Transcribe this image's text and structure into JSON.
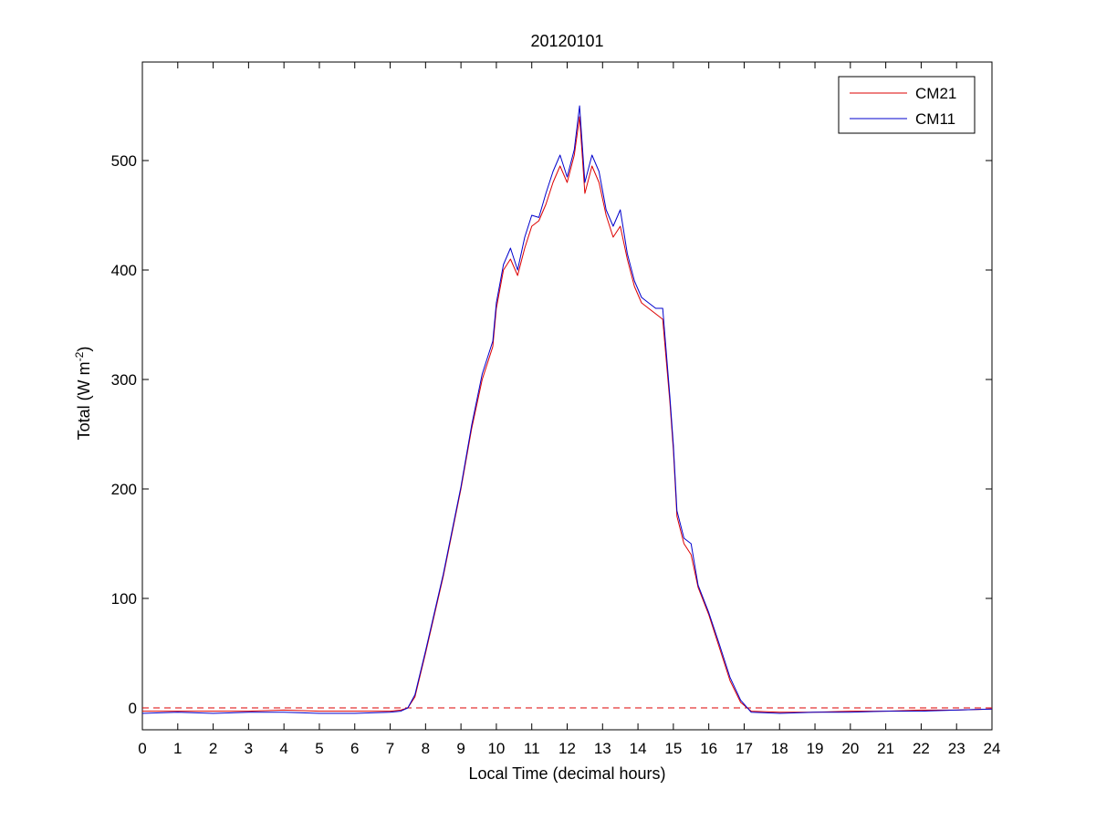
{
  "chart_data": {
    "type": "line",
    "title": "20120101",
    "xlabel": "Local Time (decimal hours)",
    "ylabel": {
      "prefix": "Total (W m",
      "superscript": "-2",
      "suffix": ")"
    },
    "xlim": [
      0,
      24
    ],
    "ylim": [
      -20,
      590
    ],
    "xticks": [
      "0",
      "1",
      "2",
      "3",
      "4",
      "5",
      "6",
      "7",
      "8",
      "9",
      "10",
      "11",
      "12",
      "13",
      "14",
      "15",
      "16",
      "17",
      "18",
      "19",
      "20",
      "21",
      "22",
      "23",
      "24"
    ],
    "yticks": [
      "0",
      "100",
      "200",
      "300",
      "400",
      "500"
    ],
    "grid": false,
    "legend_position": "top-right",
    "reference_line": {
      "y": 0,
      "style": "dashed",
      "color": "#dd0000"
    },
    "series": [
      {
        "name": "CM21",
        "color": "#dd0000",
        "x": [
          0,
          1,
          2,
          3,
          4,
          5,
          6,
          7,
          7.3,
          7.5,
          7.7,
          8.0,
          8.5,
          9.0,
          9.3,
          9.6,
          9.9,
          10.0,
          10.2,
          10.4,
          10.6,
          10.8,
          11.0,
          11.2,
          11.4,
          11.6,
          11.8,
          12.0,
          12.2,
          12.35,
          12.5,
          12.7,
          12.9,
          13.1,
          13.3,
          13.5,
          13.7,
          13.9,
          14.1,
          14.3,
          14.5,
          14.7,
          14.9,
          15.0,
          15.1,
          15.3,
          15.5,
          15.7,
          16.0,
          16.3,
          16.6,
          16.9,
          17.2,
          18,
          19,
          20,
          21,
          22,
          23,
          24
        ],
        "y": [
          -3,
          -3,
          -3,
          -3,
          -2,
          -3,
          -3,
          -3,
          -2,
          0,
          10,
          50,
          120,
          200,
          255,
          300,
          330,
          365,
          400,
          410,
          395,
          420,
          440,
          445,
          460,
          480,
          495,
          480,
          505,
          540,
          470,
          495,
          480,
          450,
          430,
          440,
          410,
          385,
          370,
          365,
          360,
          355,
          280,
          235,
          175,
          150,
          140,
          110,
          85,
          55,
          25,
          5,
          -3,
          -4,
          -4,
          -3,
          -3,
          -2,
          -2,
          -1
        ]
      },
      {
        "name": "CM11",
        "color": "#0000cc",
        "x": [
          0,
          1,
          2,
          3,
          4,
          5,
          6,
          7,
          7.3,
          7.5,
          7.7,
          8.0,
          8.5,
          9.0,
          9.3,
          9.6,
          9.9,
          10.0,
          10.2,
          10.4,
          10.6,
          10.8,
          11.0,
          11.2,
          11.4,
          11.6,
          11.8,
          12.0,
          12.2,
          12.35,
          12.5,
          12.7,
          12.9,
          13.1,
          13.3,
          13.5,
          13.7,
          13.9,
          14.1,
          14.3,
          14.5,
          14.7,
          14.9,
          15.0,
          15.1,
          15.3,
          15.5,
          15.7,
          16.0,
          16.3,
          16.6,
          16.9,
          17.2,
          18,
          19,
          20,
          21,
          22,
          23,
          24
        ],
        "y": [
          -5,
          -4,
          -5,
          -4,
          -4,
          -5,
          -5,
          -4,
          -3,
          0,
          12,
          52,
          122,
          202,
          258,
          305,
          335,
          370,
          405,
          420,
          400,
          430,
          450,
          448,
          470,
          490,
          505,
          485,
          510,
          550,
          480,
          505,
          490,
          455,
          440,
          455,
          415,
          390,
          375,
          370,
          365,
          365,
          285,
          240,
          180,
          155,
          150,
          112,
          87,
          58,
          28,
          7,
          -4,
          -5,
          -4,
          -4,
          -3,
          -3,
          -2,
          -1
        ]
      }
    ]
  }
}
